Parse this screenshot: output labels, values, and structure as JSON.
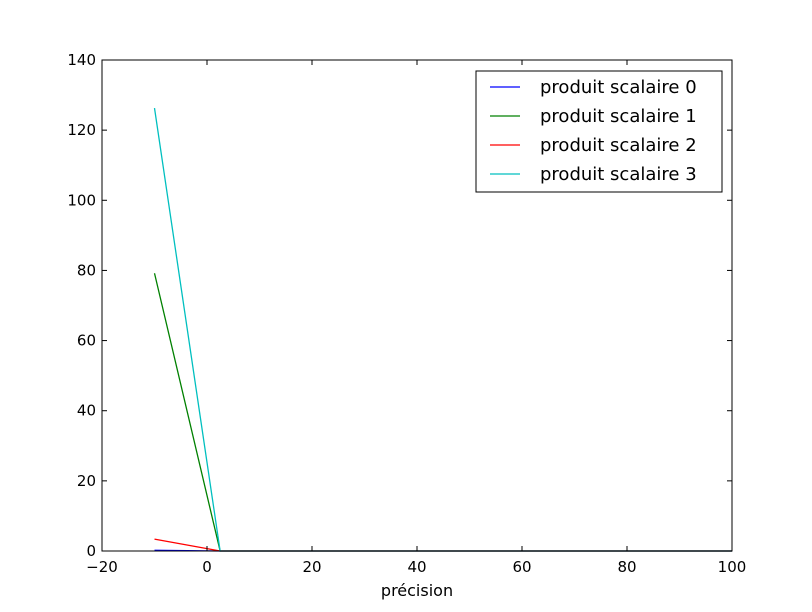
{
  "chart_data": {
    "type": "line",
    "title": "",
    "xlabel": "précision",
    "ylabel": "",
    "xlim": [
      -20,
      100
    ],
    "ylim": [
      0,
      140
    ],
    "xticks": [
      -20,
      0,
      20,
      40,
      60,
      80,
      100
    ],
    "yticks": [
      0,
      20,
      40,
      60,
      80,
      100,
      120,
      140
    ],
    "grid": false,
    "legend_position": "top-right",
    "x": [
      -10,
      2.5,
      100
    ],
    "series": [
      {
        "name": "produit scalaire 0",
        "color": "#0000ff",
        "values": [
          0.2,
          0,
          0
        ]
      },
      {
        "name": "produit scalaire 1",
        "color": "#008000",
        "values": [
          79.2,
          0,
          0
        ]
      },
      {
        "name": "produit scalaire 2",
        "color": "#ff0000",
        "values": [
          3.4,
          0,
          0
        ]
      },
      {
        "name": "produit scalaire 3",
        "color": "#00bfbf",
        "values": [
          126.3,
          0,
          0
        ]
      }
    ]
  }
}
